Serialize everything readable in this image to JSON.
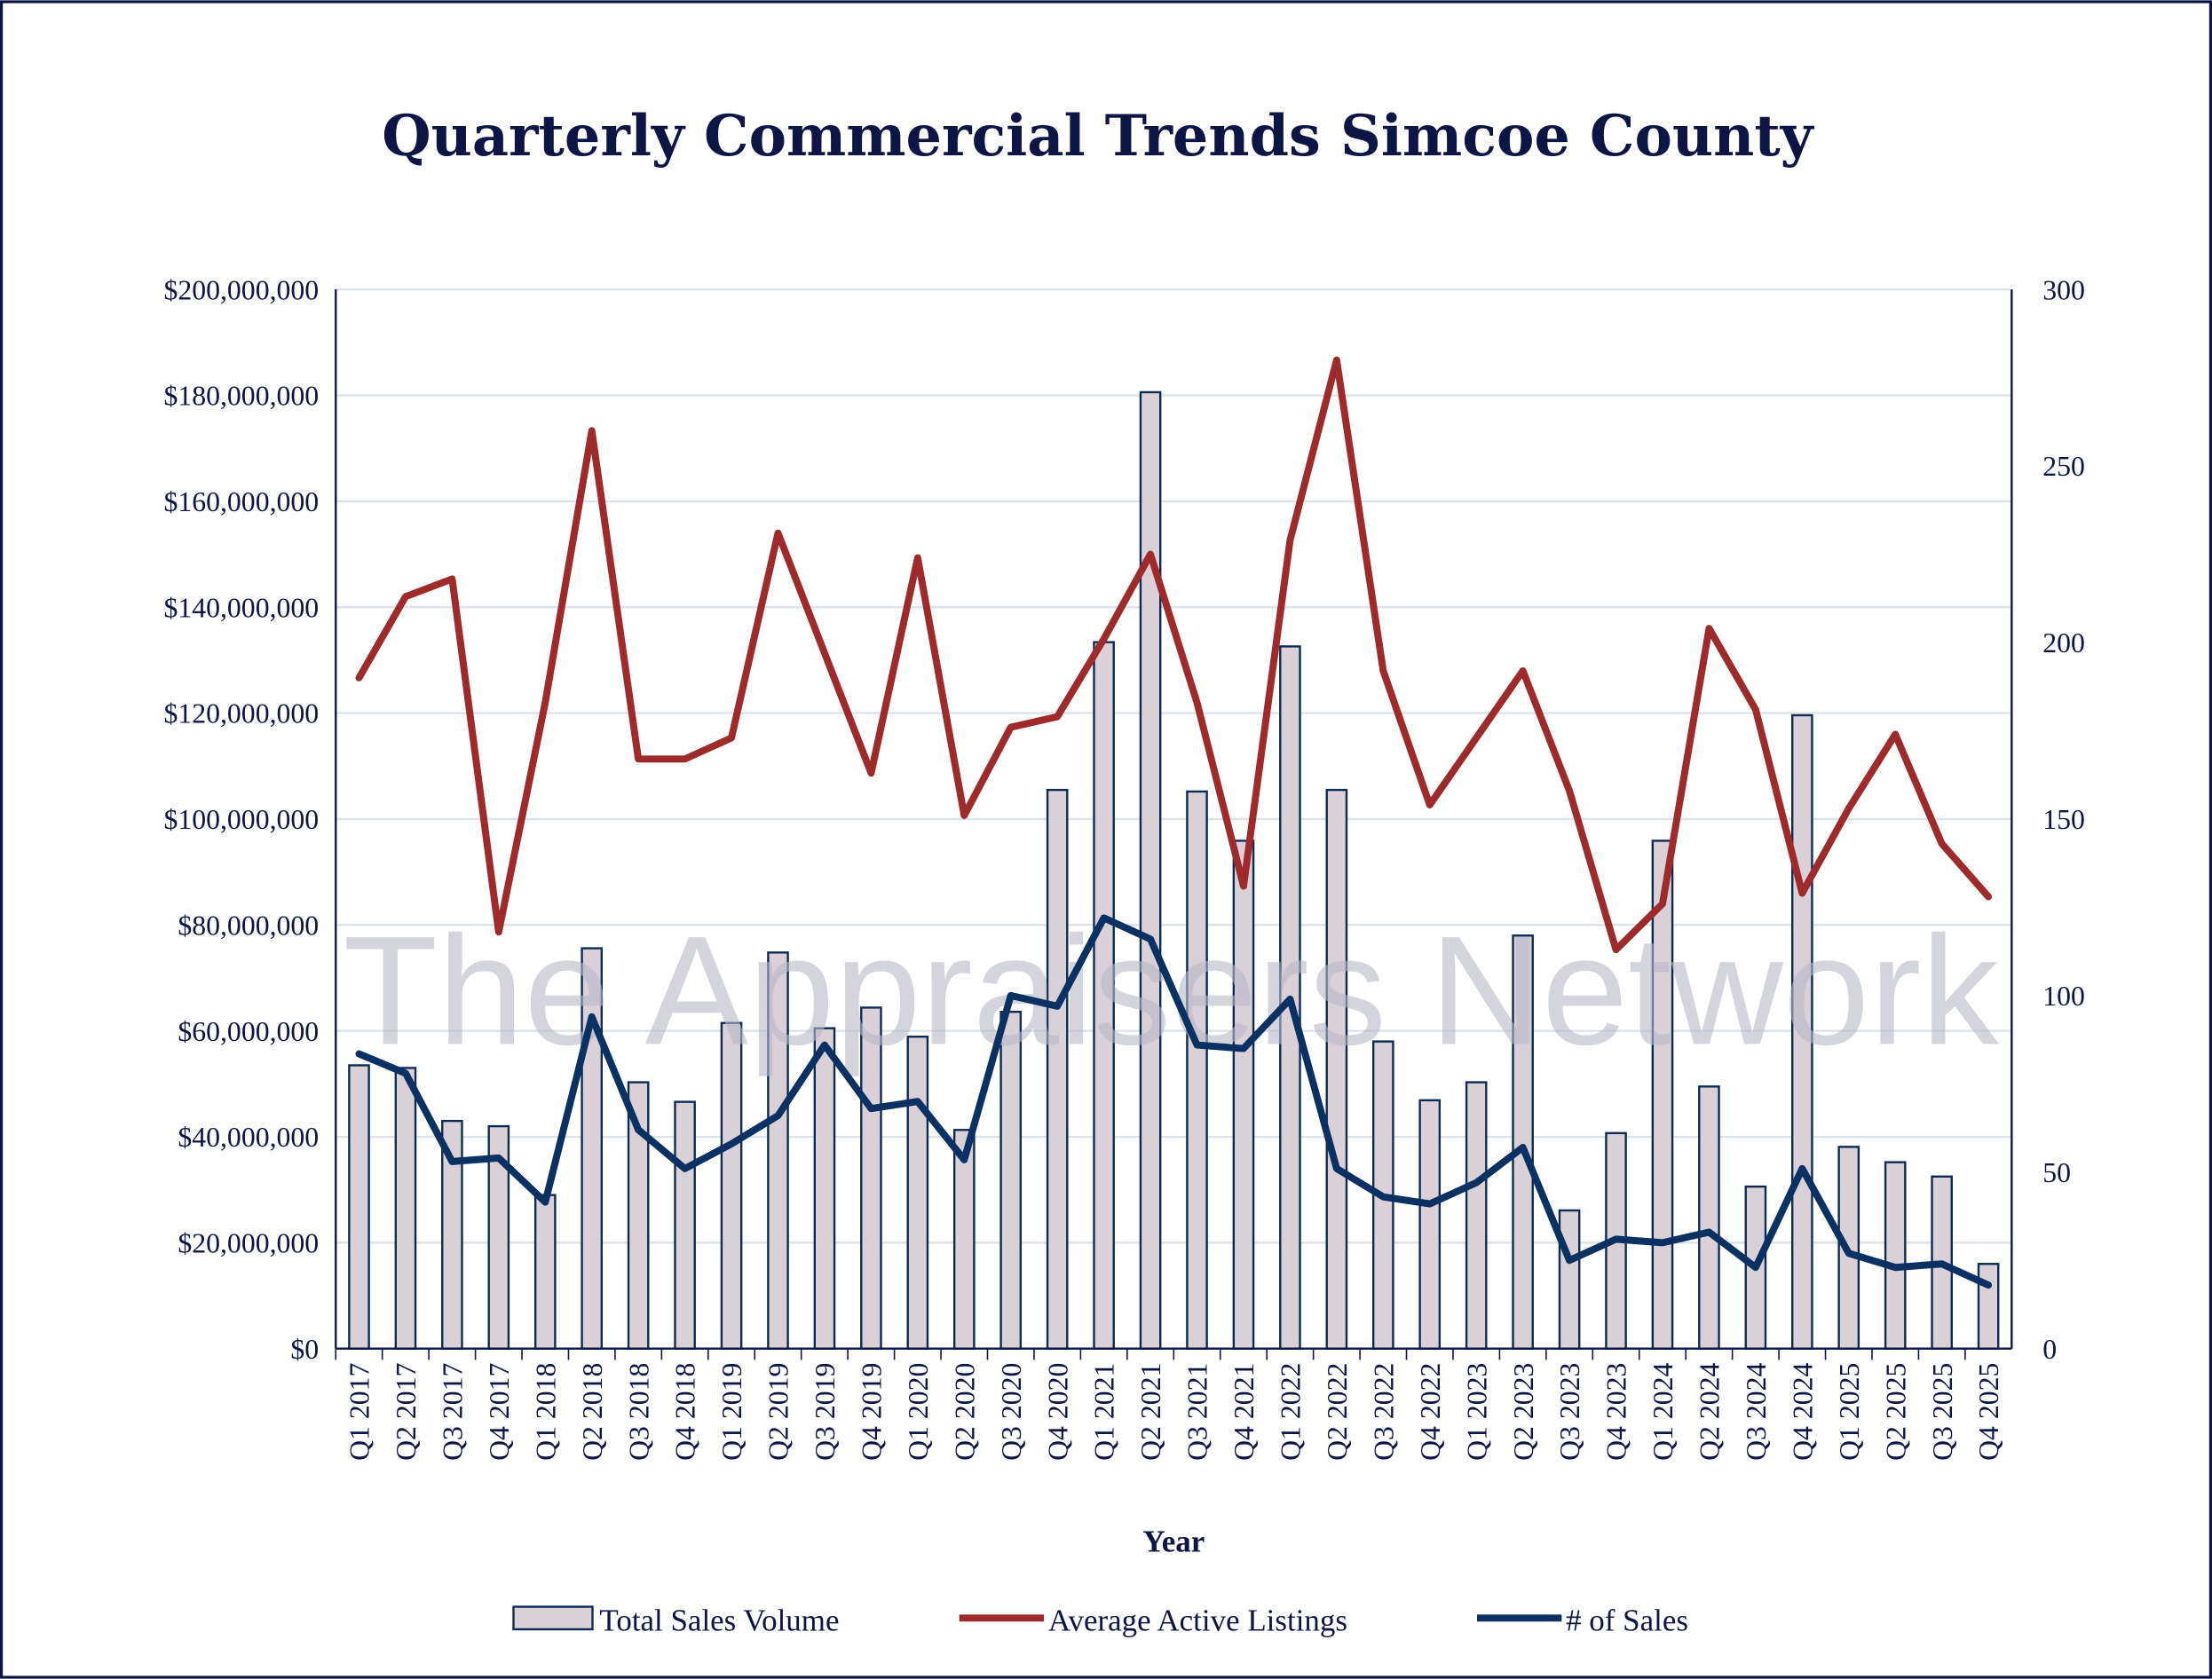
{
  "chart_data": {
    "type": "bar+line",
    "title": "Quarterly Commercial Trends Simcoe County",
    "xlabel": "Year",
    "ylabel": "",
    "y2label": "",
    "ylim": [
      0,
      200000000
    ],
    "y2lim": [
      0,
      300
    ],
    "yticks": [
      "$0",
      "$20,000,000",
      "$40,000,000",
      "$60,000,000",
      "$80,000,000",
      "$100,000,000",
      "$120,000,000",
      "$140,000,000",
      "$160,000,000",
      "$180,000,000",
      "$200,000,000"
    ],
    "y2ticks": [
      "0",
      "50",
      "100",
      "150",
      "200",
      "250",
      "300"
    ],
    "grid": true,
    "legend_position": "bottom",
    "watermark": "The Appraisers Network",
    "categories": [
      "Q1 2017",
      "Q2 2017",
      "Q3 2017",
      "Q4 2017",
      "Q1 2018",
      "Q2 2018",
      "Q3 2018",
      "Q4 2018",
      "Q1 2019",
      "Q2 2019",
      "Q3 2019",
      "Q4 2019",
      "Q1 2020",
      "Q2 2020",
      "Q3 2020",
      "Q4 2020",
      "Q1 2021",
      "Q2 2021",
      "Q3 2021",
      "Q4 2021",
      "Q1 2022",
      "Q2 2022",
      "Q3 2022",
      "Q4 2022",
      "Q1 2023",
      "Q2 2023",
      "Q3 2023",
      "Q4 2023",
      "Q1 2024",
      "Q2 2024",
      "Q3 2024",
      "Q4 2024",
      "Q1 2025",
      "Q2 2025",
      "Q3 2025",
      "Q4 2025"
    ],
    "series": [
      {
        "name": "Total Sales Volume",
        "type": "bar",
        "axis": "left",
        "color": "#d9d0d8",
        "edge": "#0d2a55",
        "values": [
          53500000,
          53000000,
          43000000,
          42000000,
          29000000,
          75600000,
          50300000,
          46600000,
          61500000,
          74800000,
          60500000,
          64400000,
          58900000,
          41300000,
          63600000,
          105500000,
          133400000,
          180600000,
          105200000,
          95900000,
          132600000,
          105500000,
          58000000,
          46900000,
          50300000,
          78000000,
          26100000,
          40700000,
          95900000,
          49500000,
          30600000,
          119600000,
          38100000,
          35200000,
          32500000,
          16000000
        ]
      },
      {
        "name": "Average Active Listings",
        "type": "line",
        "axis": "right",
        "color": "#9e2a2b",
        "values": [
          190,
          213,
          218,
          118,
          183,
          260,
          167,
          167,
          173,
          231,
          197,
          163,
          224,
          151,
          176,
          179,
          201,
          225,
          183,
          131,
          229,
          280,
          192,
          154,
          173,
          192,
          158,
          113,
          126,
          204,
          181,
          129,
          153,
          174,
          143,
          128
        ]
      },
      {
        "name": "# of Sales",
        "type": "line",
        "axis": "right",
        "color": "#0a3161",
        "values": [
          83.5,
          78,
          53,
          54,
          41.5,
          94,
          62,
          51,
          58,
          66,
          86,
          68,
          70,
          53.5,
          100,
          97,
          122,
          116,
          86,
          85,
          99,
          51,
          43,
          41,
          47,
          57,
          25,
          31,
          30,
          33,
          23,
          51,
          27,
          23,
          24,
          18
        ]
      }
    ]
  }
}
